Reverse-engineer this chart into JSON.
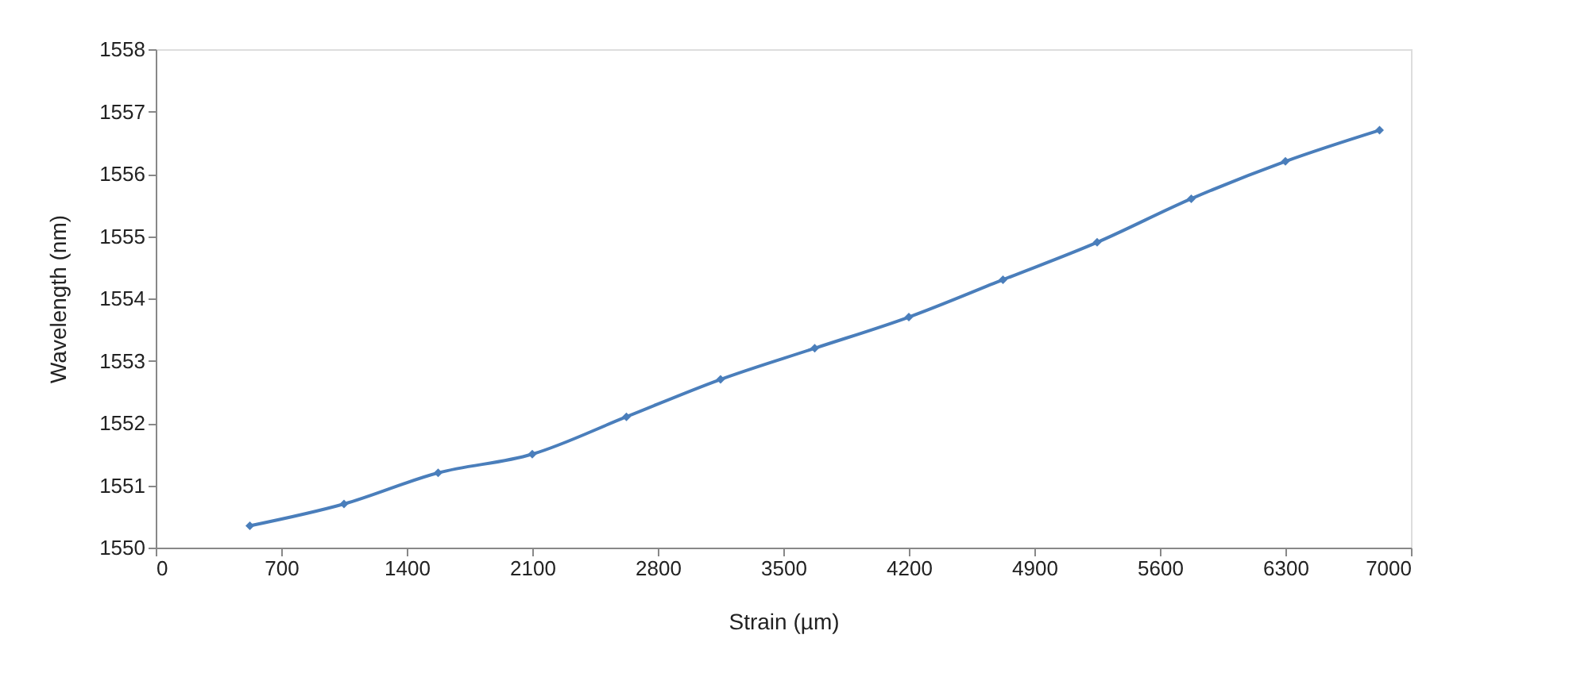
{
  "chart_data": {
    "type": "line",
    "xlabel": "Strain (µm)",
    "ylabel": "Wavelength (nm)",
    "x": [
      525,
      1050,
      1575,
      2100,
      2625,
      3150,
      3675,
      4200,
      4725,
      5250,
      5775,
      6300,
      6825
    ],
    "series": [
      {
        "color": "#4a7ebb",
        "values": [
          1550.35,
          1550.7,
          1551.2,
          1551.5,
          1552.1,
          1552.7,
          1553.2,
          1553.7,
          1554.3,
          1554.9,
          1555.6,
          1556.2,
          1556.7
        ]
      }
    ],
    "xlim": [
      0,
      7000
    ],
    "xticks": [
      0,
      700,
      1400,
      2100,
      2800,
      3500,
      4200,
      4900,
      5600,
      6300,
      7000
    ],
    "ylim": [
      1550,
      1558
    ],
    "yticks": [
      1550,
      1551,
      1552,
      1553,
      1554,
      1555,
      1556,
      1557,
      1558
    ],
    "grid": false,
    "marker": "diamond",
    "line_style": "solid"
  }
}
